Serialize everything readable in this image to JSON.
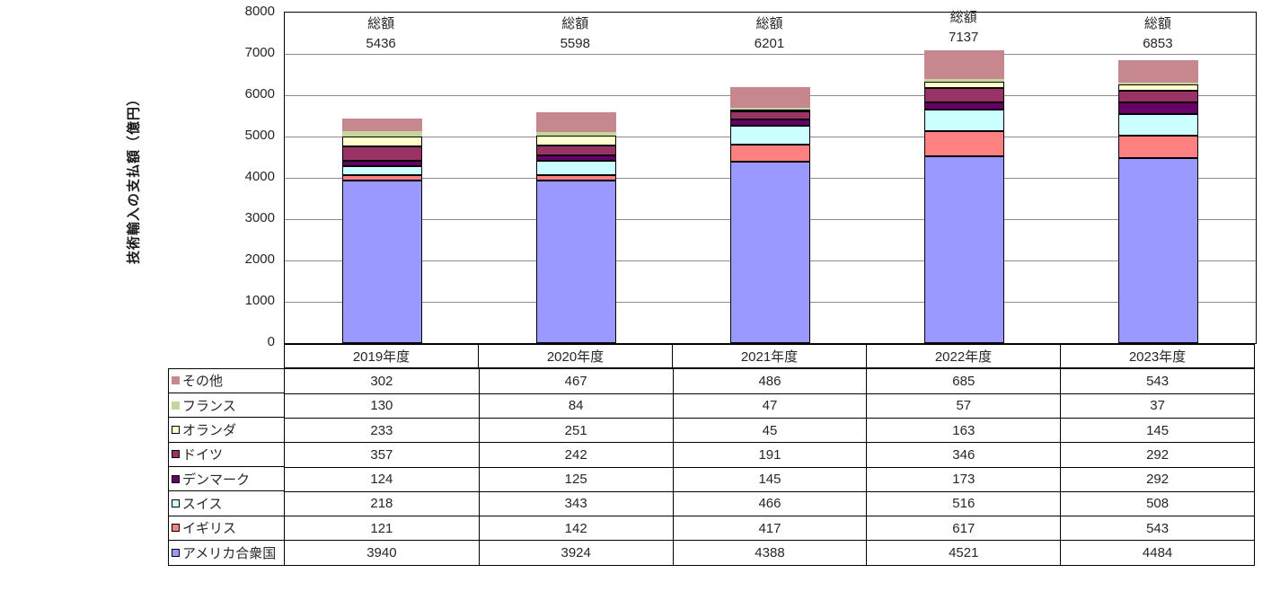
{
  "chart_data": {
    "type": "bar",
    "stacked": true,
    "ylabel": "技術輸入の支払額（億円）",
    "ylim": [
      0,
      8000
    ],
    "yticks": [
      0,
      1000,
      2000,
      3000,
      4000,
      5000,
      6000,
      7000,
      8000
    ],
    "grid": "horizontal",
    "legend_position": "table-left",
    "categories": [
      "2019年度",
      "2020年度",
      "2021年度",
      "2022年度",
      "2023年度"
    ],
    "total_label": "総額",
    "totals": [
      5436,
      5598,
      6201,
      7137,
      6853
    ],
    "series": [
      {
        "name": "その他",
        "color": "#C6878E",
        "bordered": false,
        "values": [
          302,
          467,
          486,
          685,
          543
        ]
      },
      {
        "name": "フランス",
        "color": "#C3D69B",
        "bordered": false,
        "values": [
          130,
          84,
          47,
          57,
          37
        ]
      },
      {
        "name": "オランダ",
        "color": "#FFFFCC",
        "bordered": true,
        "values": [
          233,
          251,
          45,
          163,
          145
        ]
      },
      {
        "name": "ドイツ",
        "color": "#993366",
        "bordered": true,
        "values": [
          357,
          242,
          191,
          346,
          292
        ]
      },
      {
        "name": "デンマーク",
        "color": "#660066",
        "bordered": true,
        "values": [
          124,
          125,
          145,
          173,
          292
        ]
      },
      {
        "name": "スイス",
        "color": "#CCFFFF",
        "bordered": true,
        "values": [
          218,
          343,
          466,
          516,
          508
        ]
      },
      {
        "name": "イギリス",
        "color": "#FF8080",
        "bordered": true,
        "values": [
          121,
          142,
          417,
          617,
          543
        ]
      },
      {
        "name": "アメリカ合衆国",
        "color": "#9999FF",
        "bordered": true,
        "values": [
          3940,
          3924,
          4388,
          4521,
          4484
        ]
      }
    ],
    "colors": {
      "gridline": "#8C8C8C",
      "border": "#000000",
      "text": "#262626"
    }
  }
}
